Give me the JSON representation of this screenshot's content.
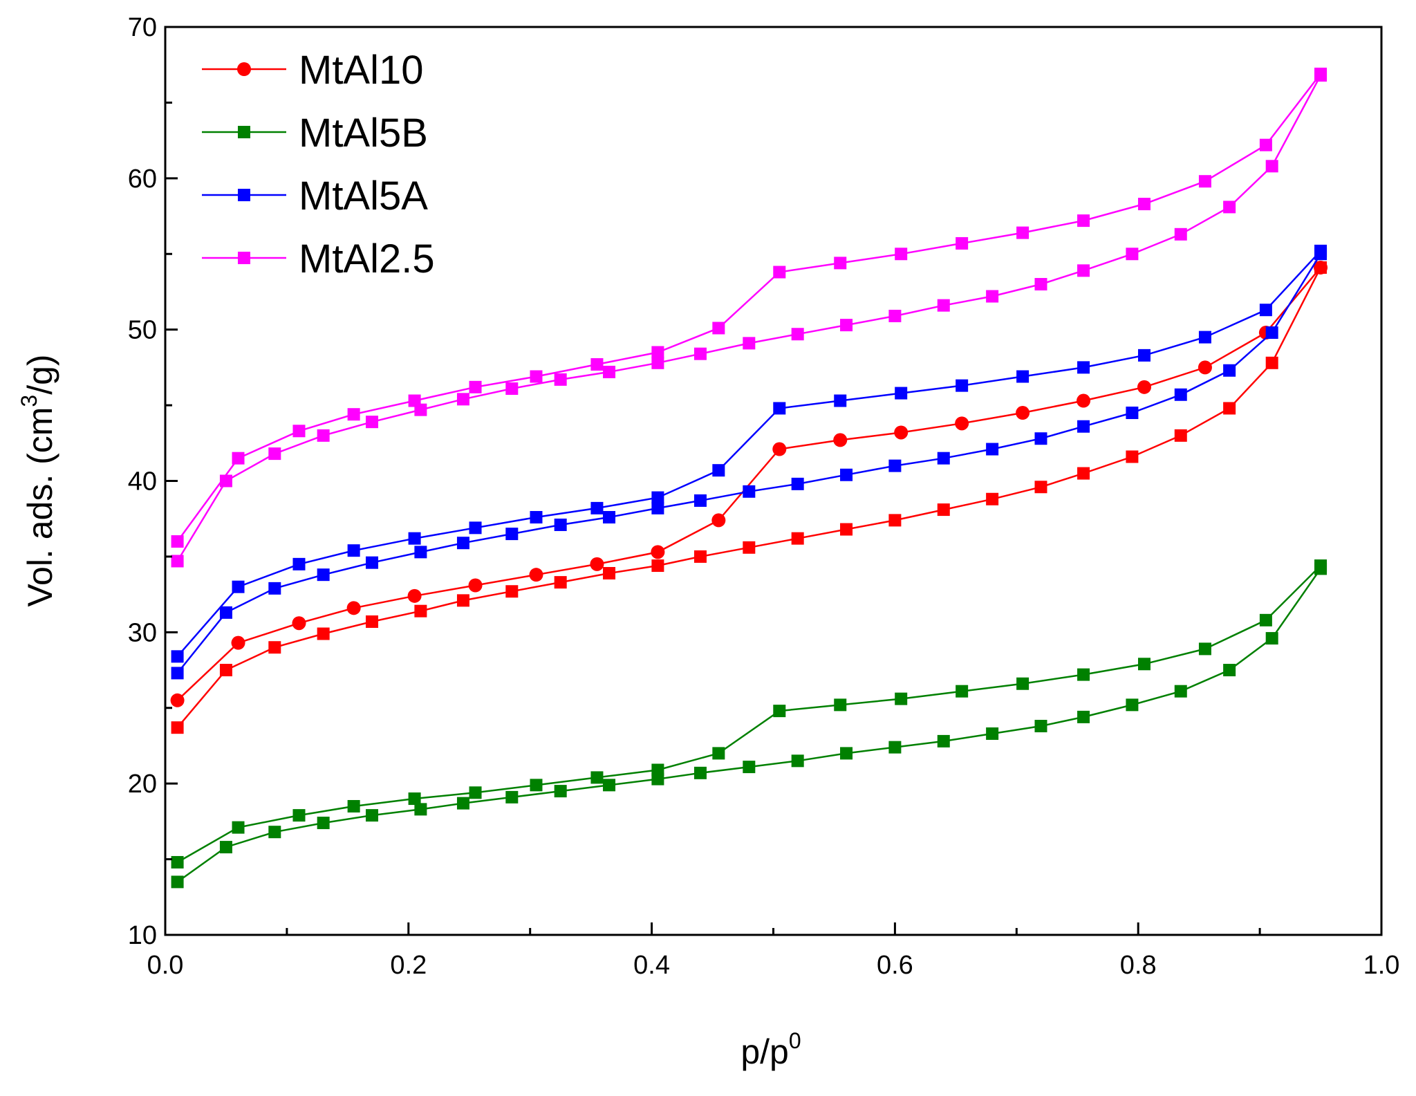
{
  "chart_data": {
    "type": "line",
    "title": "",
    "xlabel_base": "p/p",
    "xlabel_sup": "0",
    "ylabel_pre": "Vol. ads. (cm",
    "ylabel_sup": "3",
    "ylabel_post": "/g)",
    "xlim": [
      0.0,
      1.0
    ],
    "ylim": [
      10,
      70
    ],
    "xticks": [
      "0.0",
      "0.2",
      "0.4",
      "0.6",
      "0.8",
      "1.0"
    ],
    "yticks": [
      "10",
      "20",
      "30",
      "40",
      "50",
      "60",
      "70"
    ],
    "grid": false,
    "legend_position": "top-left",
    "series": [
      {
        "name": "MtAl10",
        "color": "#ff0000",
        "marker": "circle",
        "adsorption": {
          "x": [
            0.01,
            0.05,
            0.09,
            0.13,
            0.17,
            0.21,
            0.245,
            0.285,
            0.325,
            0.365,
            0.405,
            0.44,
            0.48,
            0.52,
            0.56,
            0.6,
            0.64,
            0.68,
            0.72,
            0.755,
            0.795,
            0.835,
            0.875,
            0.91,
            0.95
          ],
          "y": [
            23.7,
            27.5,
            29.0,
            29.9,
            30.7,
            31.4,
            32.1,
            32.7,
            33.3,
            33.9,
            34.4,
            35.0,
            35.6,
            36.2,
            36.8,
            37.4,
            38.1,
            38.8,
            39.6,
            40.5,
            41.6,
            43.0,
            44.8,
            47.8,
            54.1
          ]
        },
        "desorption": {
          "x": [
            0.95,
            0.905,
            0.855,
            0.805,
            0.755,
            0.705,
            0.655,
            0.605,
            0.555,
            0.505,
            0.455,
            0.405,
            0.355,
            0.305,
            0.255,
            0.205,
            0.155,
            0.11,
            0.06,
            0.01
          ],
          "y": [
            54.1,
            49.8,
            47.5,
            46.2,
            45.3,
            44.5,
            43.8,
            43.2,
            42.7,
            42.1,
            37.4,
            35.3,
            34.5,
            33.8,
            33.1,
            32.4,
            31.6,
            30.6,
            29.3,
            25.5
          ]
        }
      },
      {
        "name": "MtAl5B",
        "color": "#008000",
        "marker": "square",
        "adsorption": {
          "x": [
            0.01,
            0.05,
            0.09,
            0.13,
            0.17,
            0.21,
            0.245,
            0.285,
            0.325,
            0.365,
            0.405,
            0.44,
            0.48,
            0.52,
            0.56,
            0.6,
            0.64,
            0.68,
            0.72,
            0.755,
            0.795,
            0.835,
            0.875,
            0.91,
            0.95
          ],
          "y": [
            13.5,
            15.8,
            16.8,
            17.4,
            17.9,
            18.3,
            18.7,
            19.1,
            19.5,
            19.9,
            20.3,
            20.7,
            21.1,
            21.5,
            22.0,
            22.4,
            22.8,
            23.3,
            23.8,
            24.4,
            25.2,
            26.1,
            27.5,
            29.6,
            34.2
          ]
        },
        "desorption": {
          "x": [
            0.95,
            0.905,
            0.855,
            0.805,
            0.755,
            0.705,
            0.655,
            0.605,
            0.555,
            0.505,
            0.455,
            0.405,
            0.355,
            0.305,
            0.255,
            0.205,
            0.155,
            0.11,
            0.06,
            0.01
          ],
          "y": [
            34.4,
            30.8,
            28.9,
            27.9,
            27.2,
            26.6,
            26.1,
            25.6,
            25.2,
            24.8,
            22.0,
            20.9,
            20.4,
            19.9,
            19.4,
            19.0,
            18.5,
            17.9,
            17.1,
            14.8
          ]
        }
      },
      {
        "name": "MtAl5A",
        "color": "#0000ff",
        "marker": "square",
        "adsorption": {
          "x": [
            0.01,
            0.05,
            0.09,
            0.13,
            0.17,
            0.21,
            0.245,
            0.285,
            0.325,
            0.365,
            0.405,
            0.44,
            0.48,
            0.52,
            0.56,
            0.6,
            0.64,
            0.68,
            0.72,
            0.755,
            0.795,
            0.835,
            0.875,
            0.91,
            0.95
          ],
          "y": [
            27.3,
            31.3,
            32.9,
            33.8,
            34.6,
            35.3,
            35.9,
            36.5,
            37.1,
            37.6,
            38.2,
            38.7,
            39.3,
            39.8,
            40.4,
            41.0,
            41.5,
            42.1,
            42.8,
            43.6,
            44.5,
            45.7,
            47.3,
            49.8,
            55.0
          ]
        },
        "desorption": {
          "x": [
            0.95,
            0.905,
            0.855,
            0.805,
            0.755,
            0.705,
            0.655,
            0.605,
            0.555,
            0.505,
            0.455,
            0.405,
            0.355,
            0.305,
            0.255,
            0.205,
            0.155,
            0.11,
            0.06,
            0.01
          ],
          "y": [
            55.2,
            51.3,
            49.5,
            48.3,
            47.5,
            46.9,
            46.3,
            45.8,
            45.3,
            44.8,
            40.7,
            38.9,
            38.2,
            37.6,
            36.9,
            36.2,
            35.4,
            34.5,
            33.0,
            28.4
          ]
        }
      },
      {
        "name": "MtAl2.5",
        "color": "#ff00ff",
        "marker": "square",
        "adsorption": {
          "x": [
            0.01,
            0.05,
            0.09,
            0.13,
            0.17,
            0.21,
            0.245,
            0.285,
            0.325,
            0.365,
            0.405,
            0.44,
            0.48,
            0.52,
            0.56,
            0.6,
            0.64,
            0.68,
            0.72,
            0.755,
            0.795,
            0.835,
            0.875,
            0.91,
            0.95
          ],
          "y": [
            34.7,
            40.0,
            41.8,
            43.0,
            43.9,
            44.7,
            45.4,
            46.1,
            46.7,
            47.2,
            47.8,
            48.4,
            49.1,
            49.7,
            50.3,
            50.9,
            51.6,
            52.2,
            53.0,
            53.9,
            55.0,
            56.3,
            58.1,
            60.8,
            66.8
          ]
        },
        "desorption": {
          "x": [
            0.95,
            0.905,
            0.855,
            0.805,
            0.755,
            0.705,
            0.655,
            0.605,
            0.555,
            0.505,
            0.455,
            0.405,
            0.355,
            0.305,
            0.255,
            0.205,
            0.155,
            0.11,
            0.06,
            0.01
          ],
          "y": [
            66.9,
            62.2,
            59.8,
            58.3,
            57.2,
            56.4,
            55.7,
            55.0,
            54.4,
            53.8,
            50.1,
            48.5,
            47.7,
            46.9,
            46.2,
            45.3,
            44.4,
            43.3,
            41.5,
            36.0
          ]
        }
      }
    ]
  }
}
